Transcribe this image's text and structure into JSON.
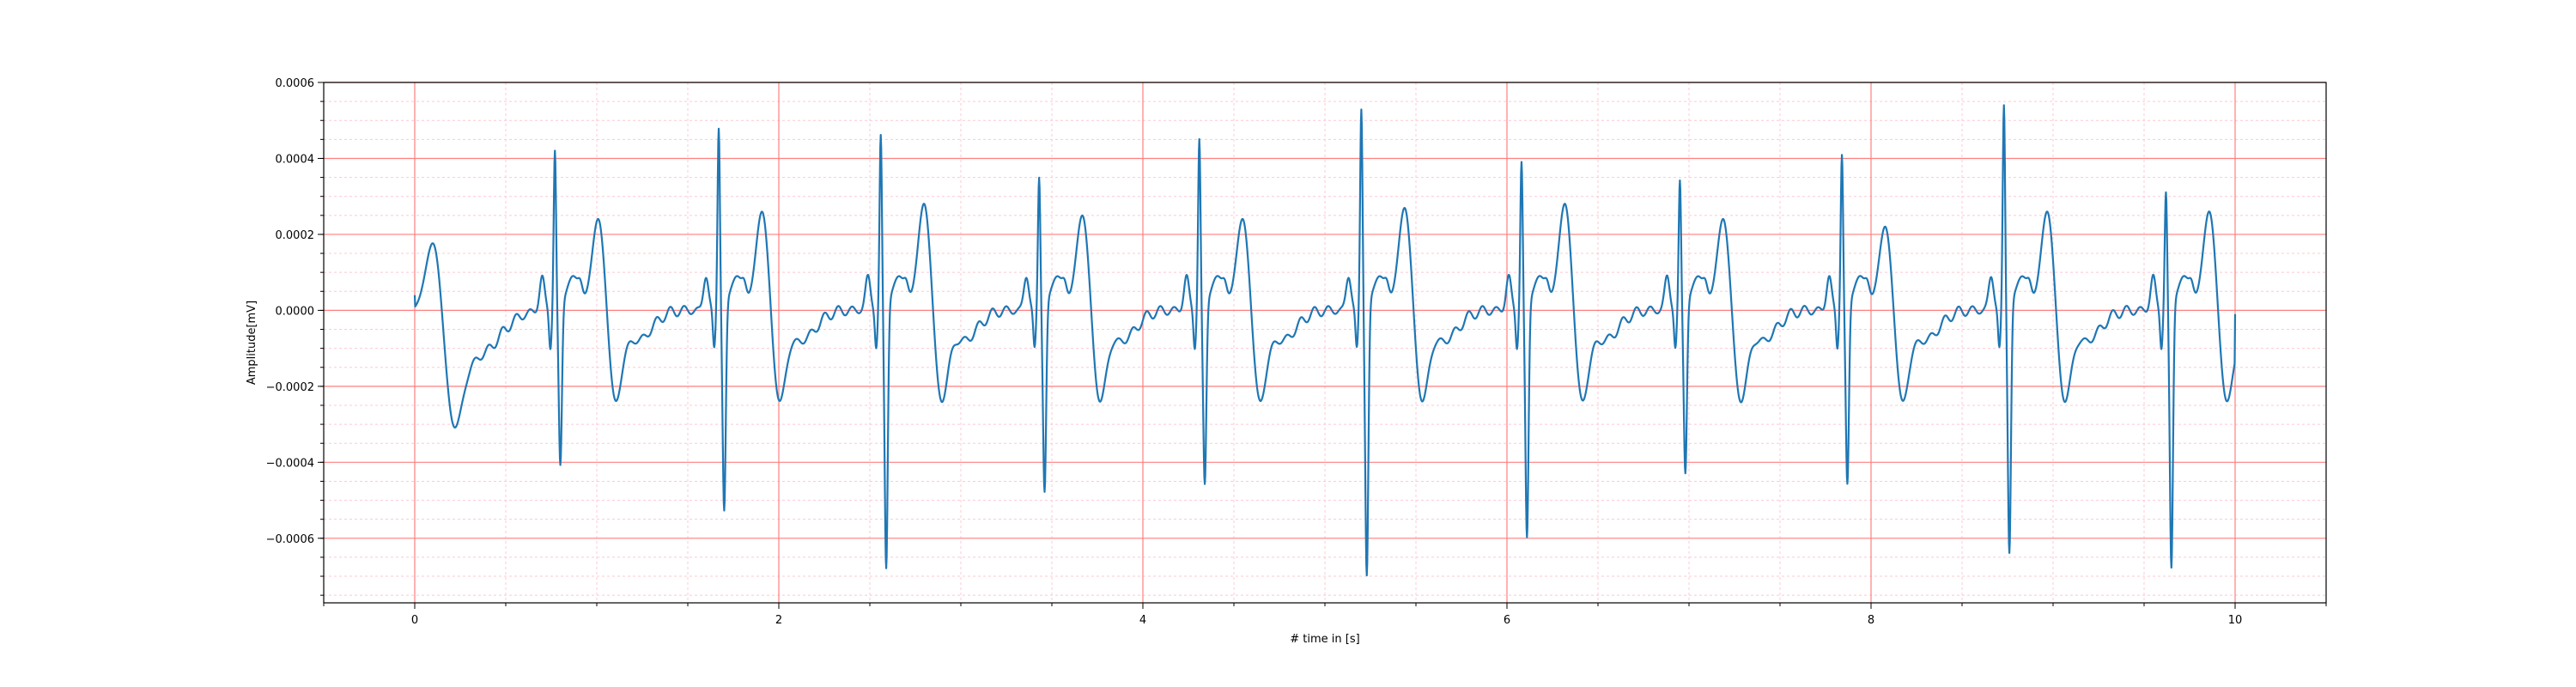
{
  "colors": {
    "background": "#ffffff",
    "line": "#1f77b4",
    "major_grid": "#ff7f7f",
    "minor_grid": "#ffc8d2",
    "axes": "#000000"
  },
  "chart_data": {
    "type": "line",
    "title": "",
    "xlabel": "# time in [s]",
    "ylabel": "Amplitude[mV]",
    "xlim": [
      -0.5,
      10.5
    ],
    "ylim": [
      -0.00077,
      0.0006
    ],
    "grid": {
      "major": true,
      "minor": true
    },
    "x_ticks": [
      {
        "value": 0,
        "label": "0"
      },
      {
        "value": 2,
        "label": "2"
      },
      {
        "value": 4,
        "label": "4"
      },
      {
        "value": 6,
        "label": "6"
      },
      {
        "value": 8,
        "label": "8"
      },
      {
        "value": 10,
        "label": "10"
      }
    ],
    "y_ticks": [
      {
        "value": 0.0006,
        "label": "0.0006"
      },
      {
        "value": 0.0004,
        "label": "0.0004"
      },
      {
        "value": 0.0002,
        "label": "0.0002"
      },
      {
        "value": 0.0,
        "label": "0.0000"
      },
      {
        "value": -0.0002,
        "label": "−0.0002"
      },
      {
        "value": -0.0004,
        "label": "−0.0004"
      },
      {
        "value": -0.0006,
        "label": "−0.0006"
      }
    ],
    "series": [
      {
        "color": "#1f77b4",
        "beats": [
          {
            "r": 0.77,
            "r_amp": 0.00042,
            "s_amp": -0.00042,
            "t_amp": 0.00025
          },
          {
            "r": 1.67,
            "r_amp": 0.00048,
            "s_amp": -0.00054,
            "t_amp": 0.00027
          },
          {
            "r": 2.56,
            "r_amp": 0.00046,
            "s_amp": -0.00069,
            "t_amp": 0.00029
          },
          {
            "r": 3.43,
            "r_amp": 0.00035,
            "s_amp": -0.00049,
            "t_amp": 0.00026
          },
          {
            "r": 4.31,
            "r_amp": 0.00045,
            "s_amp": -0.00047,
            "t_amp": 0.00025
          },
          {
            "r": 5.2,
            "r_amp": 0.00053,
            "s_amp": -0.00071,
            "t_amp": 0.00028
          },
          {
            "r": 6.08,
            "r_amp": 0.00039,
            "s_amp": -0.00061,
            "t_amp": 0.00029
          },
          {
            "r": 6.95,
            "r_amp": 0.00034,
            "s_amp": -0.00044,
            "t_amp": 0.00025
          },
          {
            "r": 7.84,
            "r_amp": 0.00041,
            "s_amp": -0.00047,
            "t_amp": 0.00023
          },
          {
            "r": 8.73,
            "r_amp": 0.00054,
            "s_amp": -0.00065,
            "t_amp": 0.00027
          },
          {
            "r": 9.62,
            "r_amp": 0.00031,
            "s_amp": -0.00069,
            "t_amp": 0.00027
          }
        ],
        "start": {
          "x": 0.0,
          "y": 4e-05
        },
        "end": {
          "x": 10.0,
          "y": -1e-05
        },
        "first_t_amp": 0.00022,
        "first_t_center": 0.11,
        "first_trough": {
          "x": 0.21,
          "y": -0.00025
        }
      }
    ]
  }
}
